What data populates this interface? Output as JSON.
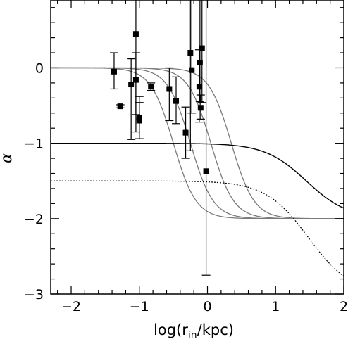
{
  "chart_data": {
    "type": "scatter",
    "title": "",
    "xlabel": {
      "main": "log(r",
      "sub": "in",
      "rest": "/kpc)"
    },
    "ylabel": "α",
    "xlim": [
      -2.3,
      2.0
    ],
    "ylim": [
      -3.0,
      0.9
    ],
    "x_ticks": [
      -2,
      -1,
      0,
      1,
      2
    ],
    "x_tick_labels": [
      "−2",
      "−1",
      "0",
      "1",
      "2"
    ],
    "y_ticks": [
      0,
      -1,
      -2,
      -3
    ],
    "y_tick_labels": [
      "0",
      "−1",
      "−2",
      "−3"
    ],
    "x_minor_step": 0.2,
    "y_minor_step": 0.2,
    "grid": false,
    "points": [
      {
        "x": -1.37,
        "y": -0.05,
        "lo": -0.28,
        "hi": 0.2
      },
      {
        "x": -1.28,
        "y": -0.51,
        "lo": -0.53,
        "hi": -0.49
      },
      {
        "x": -1.12,
        "y": -0.22,
        "lo": -0.95,
        "hi": 0.12
      },
      {
        "x": -1.05,
        "y": 0.45,
        "lo": -0.85,
        "hi": 0.9
      },
      {
        "x": -1.05,
        "y": -0.16,
        "lo": -0.62,
        "hi": 0.2
      },
      {
        "x": -1.0,
        "y": -0.66,
        "lo": -0.94,
        "hi": -0.38
      },
      {
        "x": -1.0,
        "y": -0.7,
        "lo": -0.94,
        "hi": -0.46
      },
      {
        "x": -0.83,
        "y": -0.25,
        "lo": -0.3,
        "hi": -0.2
      },
      {
        "x": -0.56,
        "y": -0.28,
        "lo": -0.7,
        "hi": 0.0
      },
      {
        "x": -0.46,
        "y": -0.44,
        "lo": -0.74,
        "hi": -0.12
      },
      {
        "x": -0.32,
        "y": -0.86,
        "lo": -1.2,
        "hi": -0.52
      },
      {
        "x": -0.25,
        "y": 0.2,
        "lo": -1.1,
        "hi": 0.9
      },
      {
        "x": -0.23,
        "y": -0.03,
        "lo": -0.6,
        "hi": 0.9
      },
      {
        "x": -0.12,
        "y": -0.25,
        "lo": -0.72,
        "hi": 0.24
      },
      {
        "x": -0.11,
        "y": 0.07,
        "lo": -0.45,
        "hi": 0.9
      },
      {
        "x": -0.08,
        "y": 0.26,
        "lo": -0.46,
        "hi": 0.9
      },
      {
        "x": -0.1,
        "y": -0.53,
        "lo": -0.68,
        "hi": -0.36
      },
      {
        "x": -0.02,
        "y": -1.37,
        "lo": -2.75,
        "hi": 0.9
      }
    ],
    "model_curves": [
      {
        "style": "gray",
        "inner": 0,
        "outer": -2,
        "break": -0.5,
        "sharpness": 6
      },
      {
        "style": "gray",
        "inner": 0,
        "outer": -2,
        "break": -0.25,
        "sharpness": 6
      },
      {
        "style": "gray",
        "inner": 0,
        "outer": -2,
        "break": 0.05,
        "sharpness": 6
      },
      {
        "style": "gray",
        "inner": 0,
        "outer": -2,
        "break": 0.35,
        "sharpness": 6
      },
      {
        "style": "solid",
        "inner": -1,
        "outer": -2,
        "break": 1.45,
        "sharpness": 3.3
      },
      {
        "style": "dotted",
        "inner": -1.5,
        "outer": -3,
        "break": 1.48,
        "sharpness": 3.2
      }
    ]
  }
}
